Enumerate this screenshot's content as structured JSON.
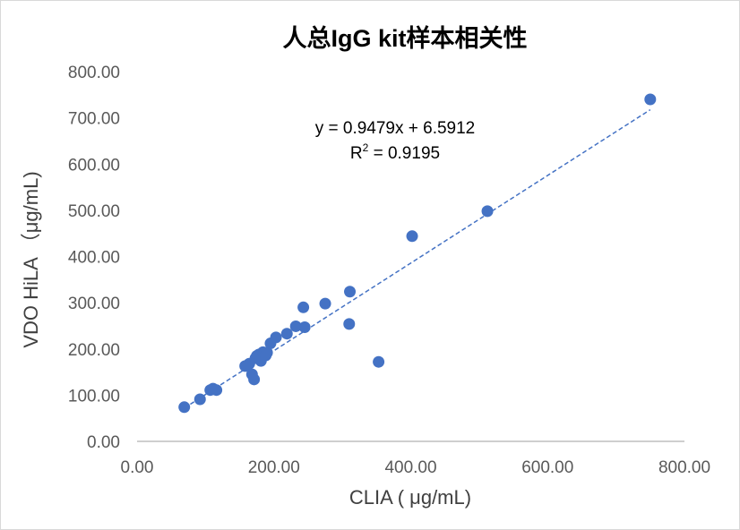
{
  "chart_data": {
    "type": "scatter",
    "title": "人总IgG kit样本相关性",
    "xlabel": "CLIA ( μg/mL)",
    "ylabel": "VDO HiLA （μg/mL)",
    "xlim": [
      0,
      800
    ],
    "ylim": [
      0,
      800
    ],
    "xticks": [
      "0.00",
      "200.00",
      "400.00",
      "600.00",
      "800.00"
    ],
    "yticks": [
      "0.00",
      "100.00",
      "200.00",
      "300.00",
      "400.00",
      "500.00",
      "600.00",
      "700.00",
      "800.00"
    ],
    "grid": false,
    "marker_color": "#4472C4",
    "points": [
      [
        69,
        74
      ],
      [
        92,
        91
      ],
      [
        107,
        111
      ],
      [
        111,
        114
      ],
      [
        116,
        111
      ],
      [
        158,
        163
      ],
      [
        161,
        164
      ],
      [
        164,
        168
      ],
      [
        168,
        145
      ],
      [
        171,
        134
      ],
      [
        173,
        180
      ],
      [
        175,
        185
      ],
      [
        178,
        188
      ],
      [
        181,
        174
      ],
      [
        184,
        193
      ],
      [
        188,
        186
      ],
      [
        190,
        192
      ],
      [
        195,
        212
      ],
      [
        203,
        225
      ],
      [
        219,
        233
      ],
      [
        232,
        249
      ],
      [
        245,
        247
      ],
      [
        243,
        290
      ],
      [
        275,
        298
      ],
      [
        311,
        324
      ],
      [
        310,
        254
      ],
      [
        353,
        172
      ],
      [
        402,
        444
      ],
      [
        512,
        498
      ],
      [
        750,
        740
      ]
    ],
    "trendline": {
      "type": "linear",
      "slope": 0.9479,
      "intercept": 6.5912,
      "style": "dashed",
      "equation_label": "y = 0.9479x + 6.5912",
      "r2_prefix": "R",
      "r2_sup": "2",
      "r2_value": " = 0.9195"
    }
  }
}
